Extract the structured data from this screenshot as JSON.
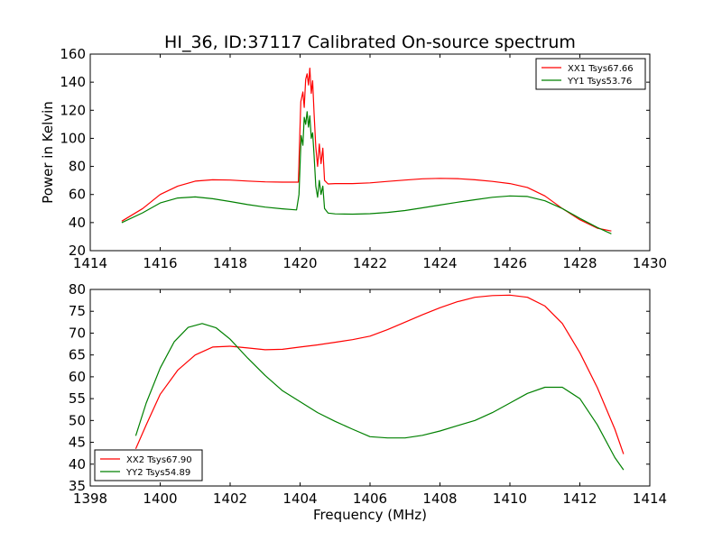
{
  "figure_title": "HI_36, ID:37117 Calibrated On-source spectrum",
  "chart_data": [
    {
      "type": "line",
      "title": "HI_36, ID:37117 Calibrated On-source spectrum",
      "xlabel": "",
      "ylabel": "Power in Kelvin",
      "xlim": [
        1414,
        1430
      ],
      "ylim": [
        20,
        160
      ],
      "xticks": [
        1414,
        1416,
        1418,
        1420,
        1422,
        1424,
        1426,
        1428,
        1430
      ],
      "yticks": [
        20,
        40,
        60,
        80,
        100,
        120,
        140,
        160
      ],
      "legend_position": "top-right",
      "series": [
        {
          "name": "XX1 Tsys67.66",
          "color": "#ff0000",
          "x": [
            1414.9,
            1415.5,
            1416.0,
            1416.5,
            1417.0,
            1417.5,
            1418.0,
            1418.5,
            1419.0,
            1419.5,
            1419.95,
            1420.02,
            1420.08,
            1420.12,
            1420.16,
            1420.2,
            1420.24,
            1420.28,
            1420.32,
            1420.36,
            1420.4,
            1420.45,
            1420.5,
            1420.55,
            1420.6,
            1420.65,
            1420.7,
            1420.8,
            1421.0,
            1421.5,
            1422.0,
            1422.5,
            1423.0,
            1423.5,
            1424.0,
            1424.5,
            1425.0,
            1425.5,
            1426.0,
            1426.5,
            1427.0,
            1427.5,
            1428.0,
            1428.5,
            1428.9
          ],
          "values": [
            41,
            50,
            60,
            66,
            69.5,
            70.5,
            70.3,
            69.6,
            69.0,
            68.8,
            68.8,
            126,
            133,
            122,
            142,
            146,
            138,
            150,
            132,
            141,
            118,
            94,
            80,
            96,
            82,
            93,
            70,
            67.5,
            67.8,
            67.8,
            68.3,
            69.3,
            70.3,
            71.2,
            71.5,
            71.3,
            70.5,
            69.3,
            67.8,
            65,
            59,
            50,
            42,
            36,
            34
          ]
        },
        {
          "name": "YY1 Tsys53.76",
          "color": "#008000",
          "x": [
            1414.9,
            1415.5,
            1416.0,
            1416.5,
            1417.0,
            1417.5,
            1418.0,
            1418.5,
            1419.0,
            1419.5,
            1419.9,
            1419.97,
            1420.03,
            1420.08,
            1420.12,
            1420.16,
            1420.2,
            1420.24,
            1420.28,
            1420.32,
            1420.36,
            1420.4,
            1420.45,
            1420.5,
            1420.55,
            1420.6,
            1420.65,
            1420.7,
            1420.8,
            1421.0,
            1421.5,
            1422.0,
            1422.5,
            1423.0,
            1423.5,
            1424.0,
            1424.5,
            1425.0,
            1425.5,
            1426.0,
            1426.5,
            1427.0,
            1427.5,
            1428.0,
            1428.5,
            1428.9
          ],
          "values": [
            40,
            47,
            54,
            57.5,
            58.3,
            57,
            55,
            52.8,
            51,
            49.8,
            49,
            60,
            102,
            95,
            115,
            110,
            119,
            108,
            116,
            100,
            104,
            88,
            66,
            58,
            70,
            60,
            66,
            50,
            46.8,
            46.2,
            46,
            46.3,
            47.2,
            48.6,
            50.5,
            52.5,
            54.5,
            56.3,
            58,
            59,
            58.6,
            55.5,
            50,
            43,
            36.5,
            32
          ]
        }
      ]
    },
    {
      "type": "line",
      "title": "",
      "xlabel": "Frequency (MHz)",
      "ylabel": "",
      "xlim": [
        1398,
        1414
      ],
      "ylim": [
        35,
        80
      ],
      "xticks": [
        1398,
        1400,
        1402,
        1404,
        1406,
        1408,
        1410,
        1412,
        1414
      ],
      "yticks": [
        35,
        40,
        45,
        50,
        55,
        60,
        65,
        70,
        75,
        80
      ],
      "legend_position": "bottom-left",
      "series": [
        {
          "name": "XX2 Tsys67.90",
          "color": "#ff0000",
          "x": [
            1399.3,
            1399.6,
            1400.0,
            1400.5,
            1401.0,
            1401.5,
            1402.0,
            1402.5,
            1403.0,
            1403.5,
            1404.0,
            1404.5,
            1405.0,
            1405.5,
            1406.0,
            1406.5,
            1407.0,
            1407.5,
            1408.0,
            1408.5,
            1409.0,
            1409.5,
            1410.0,
            1410.5,
            1411.0,
            1411.5,
            1412.0,
            1412.5,
            1413.0,
            1413.25
          ],
          "values": [
            43.5,
            49,
            56,
            61.5,
            65,
            66.8,
            67,
            66.6,
            66.2,
            66.3,
            66.8,
            67.3,
            67.9,
            68.5,
            69.3,
            70.8,
            72.5,
            74.2,
            75.8,
            77.2,
            78.2,
            78.6,
            78.7,
            78.2,
            76.2,
            72.2,
            65.5,
            57.5,
            48,
            42.3
          ]
        },
        {
          "name": "YY2 Tsys54.89",
          "color": "#008000",
          "x": [
            1399.3,
            1399.6,
            1400.0,
            1400.4,
            1400.8,
            1401.2,
            1401.6,
            1402.0,
            1402.5,
            1403.0,
            1403.5,
            1404.0,
            1404.5,
            1405.0,
            1405.5,
            1406.0,
            1406.5,
            1407.0,
            1407.5,
            1408.0,
            1408.5,
            1409.0,
            1409.5,
            1410.0,
            1410.5,
            1411.0,
            1411.5,
            1412.0,
            1412.5,
            1413.0,
            1413.25
          ],
          "values": [
            46.5,
            54,
            62,
            68,
            71.3,
            72.2,
            71.2,
            68.6,
            64.3,
            60.3,
            56.8,
            54.3,
            51.8,
            49.8,
            48.0,
            46.3,
            46.0,
            46.0,
            46.6,
            47.6,
            48.8,
            50.0,
            51.8,
            54.0,
            56.2,
            57.6,
            57.6,
            55.0,
            49.0,
            41.5,
            38.7
          ]
        }
      ]
    }
  ]
}
